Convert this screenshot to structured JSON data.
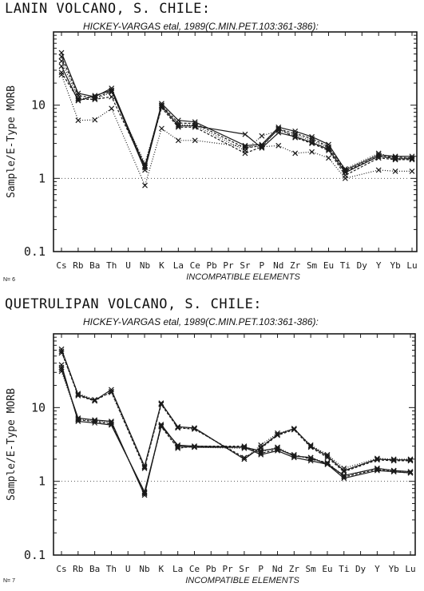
{
  "chart_data": [
    {
      "type": "line",
      "title": "LANIN VOLCANO, S. CHILE:",
      "subtitle": "HICKEY-VARGAS etal, 1989(C.MIN.PET.103:361-386):",
      "xlabel": "INCOMPATIBLE ELEMENTS",
      "ylabel": "Sample/E-Type MORB",
      "yscale": "log",
      "ylim": [
        0.1,
        100
      ],
      "yticks": [
        "0.1",
        "1",
        "10"
      ],
      "reference_line": 1,
      "sample_count": "N= 6",
      "categories": [
        "Cs",
        "Rb",
        "Ba",
        "Th",
        "U",
        "Nb",
        "K",
        "La",
        "Ce",
        "Pb",
        "Pr",
        "Sr",
        "P",
        "Nd",
        "Zr",
        "Sm",
        "Eu",
        "Ti",
        "Dy",
        "Y",
        "Yb",
        "Lu"
      ],
      "series": [
        {
          "values": [
            52,
            14.5,
            13,
            17,
            null,
            1.4,
            10.5,
            6.2,
            5.9,
            null,
            null,
            2.8,
            2.9,
            5.0,
            4.4,
            3.7,
            2.9,
            1.3,
            null,
            2.1,
            2.0,
            2.0
          ]
        },
        {
          "values": [
            46,
            13.5,
            12.5,
            15.5,
            null,
            1.5,
            10,
            5.7,
            5.6,
            null,
            null,
            2.6,
            2.8,
            4.7,
            4.1,
            3.5,
            2.7,
            1.25,
            null,
            2.0,
            1.95,
            1.9
          ]
        },
        {
          "values": [
            40,
            12.5,
            12,
            15,
            null,
            1.6,
            9.6,
            5.4,
            5.3,
            null,
            null,
            2.4,
            3.8,
            4.5,
            3.9,
            3.3,
            2.6,
            1.35,
            null,
            2.2,
            1.9,
            1.9
          ]
        },
        {
          "values": [
            34,
            11.5,
            13.5,
            16,
            null,
            1.3,
            9.8,
            5.2,
            5.2,
            null,
            null,
            4.0,
            2.6,
            4.2,
            3.7,
            3.1,
            2.5,
            1.2,
            null,
            2.0,
            1.85,
            1.85
          ]
        },
        {
          "values": [
            28,
            12,
            12,
            13,
            null,
            1.45,
            9.2,
            5.0,
            5.0,
            null,
            null,
            2.2,
            2.7,
            4.8,
            3.6,
            3.0,
            2.4,
            1.1,
            null,
            1.9,
            1.8,
            1.8
          ]
        },
        {
          "values": [
            26,
            6.2,
            6.3,
            9.0,
            null,
            0.8,
            4.8,
            3.3,
            3.3,
            null,
            null,
            2.7,
            2.7,
            2.8,
            2.2,
            2.3,
            1.9,
            1.0,
            null,
            1.3,
            1.25,
            1.25
          ]
        }
      ]
    },
    {
      "type": "line",
      "title": "QUETRULIPAN VOLCANO, S. CHILE:",
      "subtitle": "HICKEY-VARGAS etal, 1989(C.MIN.PET.103:361-386):",
      "xlabel": "INCOMPATIBLE ELEMENTS",
      "ylabel": "Sample/E-Type MORB",
      "yscale": "log",
      "ylim": [
        0.1,
        100
      ],
      "yticks": [
        "0.1",
        "1",
        "10"
      ],
      "reference_line": 1,
      "sample_count": "N= 7",
      "categories": [
        "Cs",
        "Rb",
        "Ba",
        "Th",
        "U",
        "Nb",
        "K",
        "La",
        "Ce",
        "Pb",
        "Pr",
        "Sr",
        "P",
        "Nd",
        "Zr",
        "Sm",
        "Eu",
        "Ti",
        "Dy",
        "Y",
        "Yb",
        "Lu"
      ],
      "series": [
        {
          "values": [
            62,
            15,
            12.5,
            17.5,
            null,
            1.6,
            11.5,
            5.5,
            5.3,
            null,
            null,
            2.0,
            2.9,
            4.3,
            5.2,
            3.0,
            2.2,
            1.4,
            null,
            2.0,
            1.95,
            1.95
          ]
        },
        {
          "values": [
            58,
            14.5,
            12.3,
            16.5,
            null,
            1.5,
            11,
            5.3,
            5.1,
            null,
            null,
            2.1,
            2.8,
            4.2,
            5.0,
            2.9,
            2.1,
            1.35,
            null,
            1.95,
            1.9,
            1.9
          ]
        },
        {
          "values": [
            55,
            15.5,
            12.8,
            16,
            null,
            1.55,
            11.2,
            5.4,
            5.2,
            null,
            null,
            2.0,
            3.1,
            4.5,
            5.1,
            3.1,
            2.3,
            1.5,
            null,
            2.05,
            2.0,
            2.0
          ]
        },
        {
          "values": [
            33,
            7.2,
            6.8,
            6.5,
            null,
            0.65,
            5.9,
            3.0,
            2.9,
            null,
            null,
            2.9,
            2.6,
            2.8,
            2.2,
            2.1,
            1.7,
            1.2,
            null,
            1.5,
            1.4,
            1.35
          ]
        },
        {
          "values": [
            35,
            6.8,
            6.5,
            6.0,
            null,
            0.7,
            5.5,
            2.8,
            3.0,
            null,
            null,
            3.0,
            2.4,
            2.7,
            2.3,
            2.0,
            1.8,
            1.15,
            null,
            1.45,
            1.35,
            1.3
          ]
        },
        {
          "values": [
            31,
            7.0,
            6.6,
            6.3,
            null,
            0.68,
            5.7,
            2.9,
            2.9,
            null,
            null,
            2.8,
            2.5,
            2.9,
            2.2,
            2.1,
            1.75,
            1.2,
            null,
            1.5,
            1.4,
            1.35
          ]
        },
        {
          "values": [
            38,
            6.5,
            6.2,
            5.8,
            null,
            0.72,
            5.6,
            3.1,
            3.0,
            null,
            null,
            2.9,
            2.3,
            2.6,
            2.1,
            1.9,
            1.7,
            1.1,
            null,
            1.4,
            1.35,
            1.3
          ]
        }
      ]
    }
  ],
  "colors": {
    "ink": "#1a1a1a",
    "reference": "#555555"
  }
}
